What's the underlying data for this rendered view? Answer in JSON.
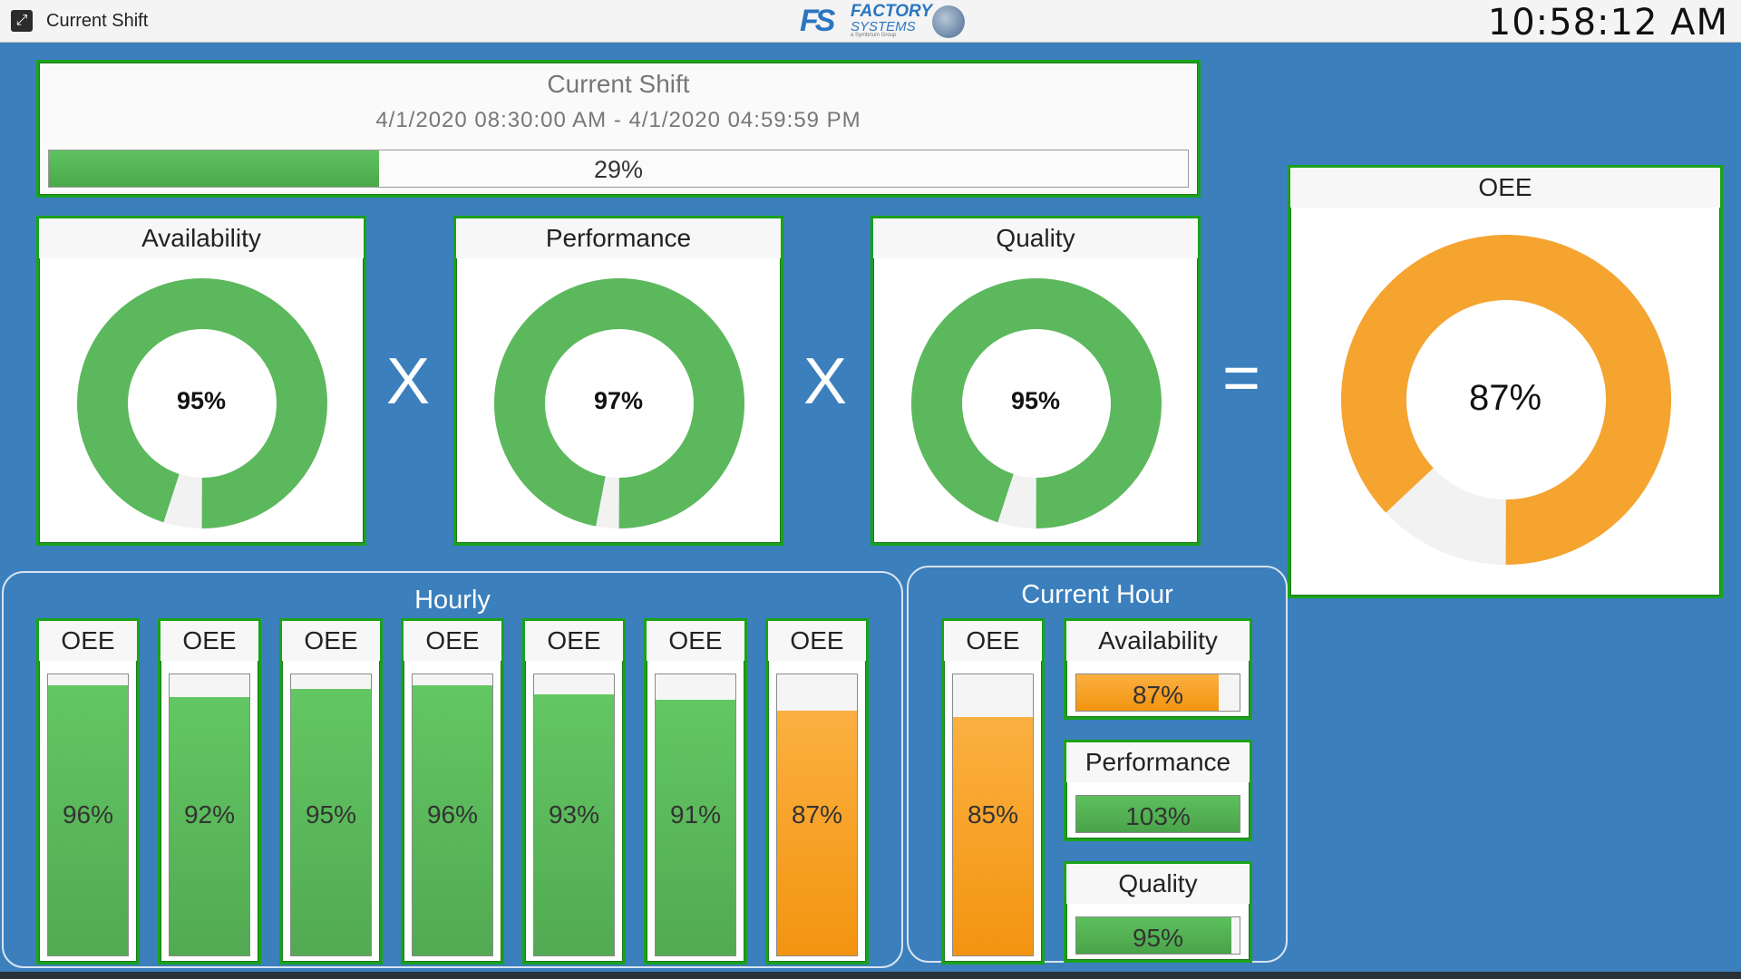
{
  "window": {
    "title": "Current Shift",
    "clock": "10:58:12 AM"
  },
  "logo": {
    "line1": "FACTORY",
    "line2": "SYSTEMS",
    "line3": "a Symbrium Group"
  },
  "shift": {
    "title": "Current Shift",
    "range": "4/1/2020 08:30:00 AM - 4/1/2020 04:59:59 PM",
    "progress": 29,
    "progress_label": "29%"
  },
  "gauges": [
    {
      "title": "Availability",
      "value": 95,
      "label": "95%"
    },
    {
      "title": "Performance",
      "value": 97,
      "label": "97%"
    },
    {
      "title": "Quality",
      "value": 95,
      "label": "95%"
    }
  ],
  "operators": {
    "multiply": "X",
    "equals": "="
  },
  "oee": {
    "title": "OEE",
    "value": 87,
    "label": "87%"
  },
  "colors": {
    "green": "#5cb85c",
    "orange": "#f5a430",
    "track": "#f2f2f2"
  },
  "hourly": {
    "title": "Hourly",
    "bars": [
      {
        "title": "OEE",
        "value": 96,
        "label": "96%",
        "color": "green"
      },
      {
        "title": "OEE",
        "value": 92,
        "label": "92%",
        "color": "green"
      },
      {
        "title": "OEE",
        "value": 95,
        "label": "95%",
        "color": "green"
      },
      {
        "title": "OEE",
        "value": 96,
        "label": "96%",
        "color": "green"
      },
      {
        "title": "OEE",
        "value": 93,
        "label": "93%",
        "color": "green"
      },
      {
        "title": "OEE",
        "value": 91,
        "label": "91%",
        "color": "green"
      },
      {
        "title": "OEE",
        "value": 87,
        "label": "87%",
        "color": "orange"
      }
    ]
  },
  "current_hour": {
    "title": "Current Hour",
    "oee": {
      "title": "OEE",
      "value": 85,
      "label": "85%",
      "color": "orange"
    },
    "metrics": [
      {
        "title": "Availability",
        "value": 87,
        "label": "87%",
        "color": "orange"
      },
      {
        "title": "Performance",
        "value": 103,
        "label": "103%",
        "color": "green"
      },
      {
        "title": "Quality",
        "value": 95,
        "label": "95%",
        "color": "green"
      }
    ]
  }
}
